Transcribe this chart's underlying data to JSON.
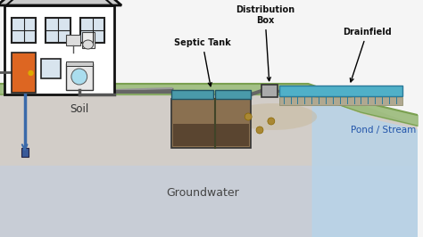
{
  "sky_color": "#f5f5f5",
  "ground_color": "#d2cdc8",
  "groundwater_color": "#c8cdd6",
  "grass_color": "#9abb7a",
  "grass_line_color": "#7aa050",
  "pond_color": "#b8d4e8",
  "pond_fill_color": "#c8dff0",
  "septic_tank_body": "#8a7050",
  "septic_tank_top": "#4a9aaa",
  "septic_divider": "#5a6040",
  "dist_box_color": "#aaaaaa",
  "drainfield_color": "#50b0c8",
  "drainfield_border": "#2a7a9a",
  "pipe_color": "#888888",
  "house_fill": "#ffffff",
  "house_edge": "#111111",
  "roof_fill": "#cccccc",
  "chimney_color": "#cc2222",
  "door_color": "#dd6622",
  "window_fill": "#d8e4ee",
  "soil_label": "Soil",
  "groundwater_label": "Groundwater",
  "pond_label": "Pond / Stream",
  "septic_label": "Septic Tank",
  "distbox_label": "Distribution\nBox",
  "drainfield_label": "Drainfield",
  "drop_color": "#aa8833",
  "probe_color": "#3a5a99",
  "brown_patch_color": "#c8b89a",
  "annotation_color": "#111111"
}
